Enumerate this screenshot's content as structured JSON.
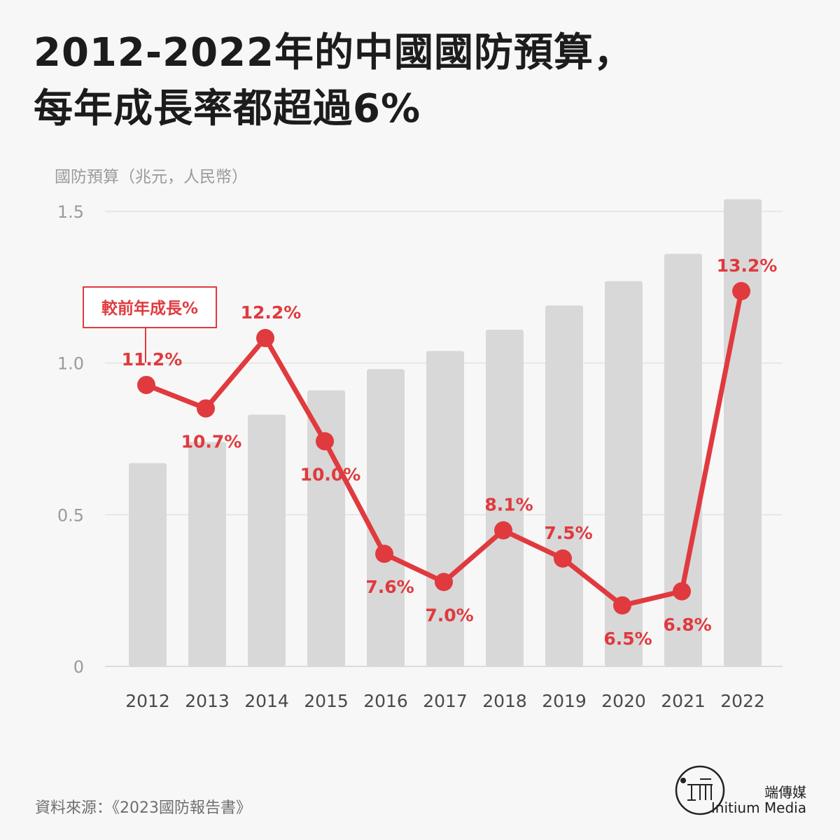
{
  "title": {
    "line1": "2012-2022年的中國國防預算，",
    "line2": "每年成長率都超過6%"
  },
  "source": "資料來源：《2023國防報告書》",
  "brand": {
    "cn": "端傳媒",
    "en": "Initium Media",
    "logo_icon": "initium-logo-icon"
  },
  "colors": {
    "bar": "#d8d8d8",
    "line": "#e03a3e",
    "axis_text": "#9a9a9a",
    "grid": "#e2e2e2"
  },
  "chart_data": {
    "type": "bar",
    "ylabel": "國防預算（兆元，人民幣）",
    "ylim": [
      0,
      1.5
    ],
    "y_ticks": [
      "0",
      "0.5",
      "1.0",
      "1.5"
    ],
    "y_tick_values": [
      0,
      0.5,
      1.0,
      1.5
    ],
    "categories": [
      "2012",
      "2013",
      "2014",
      "2015",
      "2016",
      "2017",
      "2018",
      "2019",
      "2020",
      "2021",
      "2022"
    ],
    "series": [
      {
        "type": "bar",
        "values": [
          0.67,
          0.74,
          0.83,
          0.91,
          0.98,
          1.04,
          1.11,
          1.19,
          1.27,
          1.36,
          1.54
        ]
      },
      {
        "type": "line",
        "name": "較前年成長%",
        "values": [
          11.2,
          10.7,
          12.2,
          10.0,
          7.6,
          7.0,
          8.1,
          7.5,
          6.5,
          6.8,
          13.2
        ],
        "labels": [
          "11.2%",
          "10.7%",
          "12.2%",
          "10.0%",
          "7.6%",
          "7.0%",
          "8.1%",
          "7.5%",
          "6.5%",
          "6.8%",
          "13.2%"
        ],
        "label_positions": [
          "above",
          "below",
          "above",
          "below",
          "below",
          "below",
          "above",
          "above",
          "below",
          "below",
          "above"
        ],
        "ylim": [
          5.2,
          14.9
        ]
      }
    ],
    "grid": true,
    "legend": "top-left"
  }
}
